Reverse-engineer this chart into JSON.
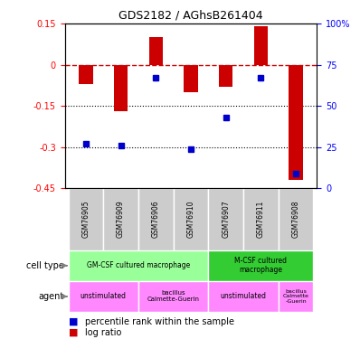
{
  "title": "GDS2182 / AGhsB261404",
  "samples": [
    "GSM76905",
    "GSM76909",
    "GSM76906",
    "GSM76910",
    "GSM76907",
    "GSM76911",
    "GSM76908"
  ],
  "log_ratio": [
    -0.07,
    -0.17,
    0.1,
    -0.1,
    -0.08,
    0.14,
    -0.42
  ],
  "percentile_rank": [
    27,
    26,
    67,
    24,
    43,
    67,
    9
  ],
  "ylim_left": [
    -0.45,
    0.15
  ],
  "ylim_right": [
    0,
    100
  ],
  "left_ticks": [
    0.15,
    0,
    -0.15,
    -0.3,
    -0.45
  ],
  "right_ticks": [
    100,
    75,
    50,
    25,
    0
  ],
  "bar_color": "#cc0000",
  "dot_color": "#0000cc",
  "dashed_line_color": "#cc0000",
  "background_color": "#ffffff",
  "sample_bg_color": "#cccccc",
  "gm_csf_color": "#99ff99",
  "m_csf_color": "#33cc33",
  "agent_color": "#ff88ff"
}
